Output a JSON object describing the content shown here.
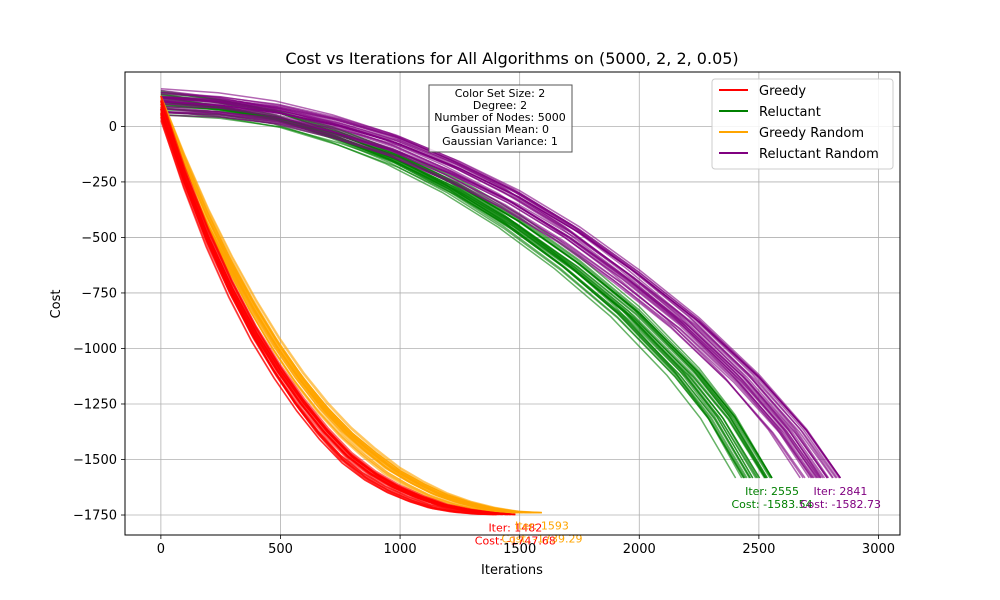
{
  "chart_data": {
    "type": "line",
    "title": "Cost vs Iterations for All Algorithms on (5000, 2, 2, 0.05)",
    "xlabel": "Iterations",
    "ylabel": "Cost",
    "xlim": [
      -150,
      3090
    ],
    "ylim": [
      -1840,
      245
    ],
    "xticks": [
      0,
      500,
      1000,
      1500,
      2000,
      2500,
      3000
    ],
    "yticks": [
      0,
      -250,
      -500,
      -750,
      -1000,
      -1250,
      -1500,
      -1750
    ],
    "grid": true,
    "legend_position": "top-right",
    "info_box": [
      "Color Set Size: 2",
      "Degree: 2",
      "Number of Nodes: 5000",
      "Gaussian Mean: 0",
      "Gaussian Variance: 1"
    ],
    "series": [
      {
        "name": "Greedy",
        "color": "#ff0000",
        "x": [
          0,
          100,
          200,
          300,
          400,
          500,
          600,
          700,
          800,
          900,
          1000,
          1100,
          1200,
          1300,
          1400,
          1482
        ],
        "y": [
          80,
          -230,
          -500,
          -730,
          -930,
          -1100,
          -1250,
          -1380,
          -1490,
          -1570,
          -1630,
          -1675,
          -1710,
          -1730,
          -1742,
          -1747.68
        ],
        "run_count": 100,
        "final_iter": 1482,
        "final_cost": -1747.68,
        "annotation_iter": "Iter: 1482",
        "annotation_cost": "Cost: -1747.68"
      },
      {
        "name": "Reluctant",
        "color": "#008000",
        "x": [
          0,
          250,
          500,
          750,
          1000,
          1250,
          1500,
          1750,
          2000,
          2250,
          2400,
          2555
        ],
        "y": [
          110,
          85,
          40,
          -40,
          -140,
          -270,
          -430,
          -620,
          -840,
          -1110,
          -1310,
          -1583.54
        ],
        "run_count": 100,
        "final_iter": 2555,
        "final_cost": -1583.54,
        "annotation_iter": "Iter: 2555",
        "annotation_cost": "Cost: -1583.54"
      },
      {
        "name": "Greedy Random",
        "color": "#ffa500",
        "x": [
          0,
          100,
          200,
          300,
          400,
          500,
          600,
          700,
          800,
          900,
          1000,
          1100,
          1200,
          1300,
          1400,
          1500,
          1593
        ],
        "y": [
          80,
          -180,
          -420,
          -630,
          -820,
          -990,
          -1140,
          -1270,
          -1380,
          -1470,
          -1550,
          -1610,
          -1660,
          -1695,
          -1720,
          -1735,
          -1739.29
        ],
        "run_count": 100,
        "final_iter": 1593,
        "final_cost": -1739.29,
        "annotation_iter": "Iter: 1593",
        "annotation_cost": "Cost: -1739.29"
      },
      {
        "name": "Reluctant Random",
        "color": "#800080",
        "x": [
          0,
          250,
          500,
          750,
          1000,
          1250,
          1500,
          1750,
          2000,
          2250,
          2500,
          2700,
          2841
        ],
        "y": [
          110,
          95,
          60,
          0,
          -80,
          -190,
          -320,
          -480,
          -670,
          -880,
          -1130,
          -1370,
          -1582.73
        ],
        "run_count": 100,
        "final_iter": 2841,
        "final_cost": -1582.73,
        "annotation_iter": "Iter: 2841",
        "annotation_cost": "Cost: -1582.73"
      }
    ]
  }
}
